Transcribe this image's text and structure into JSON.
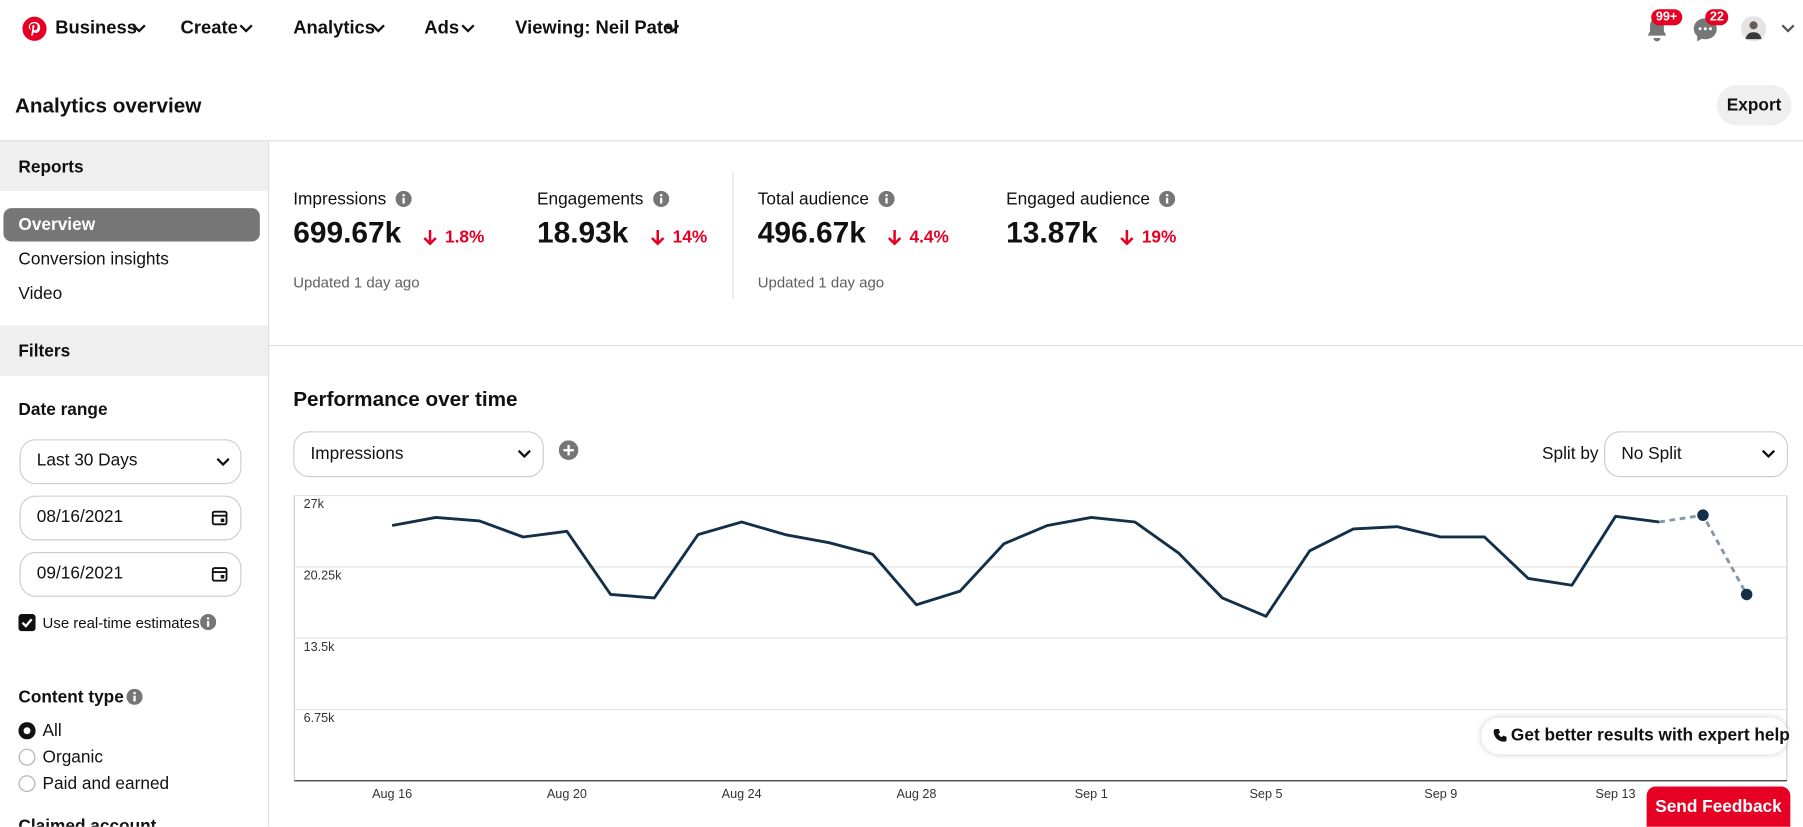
{
  "nav": {
    "brand": "Business",
    "items": [
      "Create",
      "Analytics",
      "Ads",
      "Viewing: Neil Patel"
    ],
    "notifications": "99+",
    "messages": "22"
  },
  "header": {
    "title": "Analytics overview",
    "export": "Export"
  },
  "sidebar": {
    "reports_heading": "Reports",
    "reports": [
      "Overview",
      "Conversion insights",
      "Video"
    ],
    "filters_heading": "Filters",
    "date_range_label": "Date range",
    "date_range": "Last 30 Days",
    "start_date": "08/16/2021",
    "end_date": "09/16/2021",
    "realtime": "Use real-time estimates",
    "content_type_label": "Content type",
    "content_types": [
      "All",
      "Organic",
      "Paid and earned"
    ],
    "claimed": "Claimed account"
  },
  "metrics": [
    {
      "label": "Impressions",
      "value": "699.67k",
      "change": "1.8%",
      "updated": "Updated 1 day ago"
    },
    {
      "label": "Engagements",
      "value": "18.93k",
      "change": "14%"
    },
    {
      "label": "Total audience",
      "value": "496.67k",
      "change": "4.4%",
      "updated": "Updated 1 day ago"
    },
    {
      "label": "Engaged audience",
      "value": "13.87k",
      "change": "19%"
    }
  ],
  "performance": {
    "title": "Performance over time",
    "metric": "Impressions",
    "split_label": "Split by",
    "split": "No Split"
  },
  "help": "Get better results with expert help",
  "feedback": "Send Feedback",
  "chart_data": {
    "type": "line",
    "categories": [
      "Aug 16",
      null,
      null,
      null,
      "Aug 20",
      null,
      null,
      null,
      "Aug 24",
      null,
      null,
      null,
      "Aug 28",
      null,
      null,
      null,
      "Sep 1",
      null,
      null,
      null,
      "Sep 5",
      null,
      null,
      null,
      "Sep 9",
      null,
      null,
      null,
      "Sep 13",
      null,
      null,
      null
    ],
    "series": [
      {
        "color": "#133048",
        "values": [
          24170,
          24930,
          24600,
          23080,
          23620,
          17640,
          17310,
          23300,
          24500,
          23300,
          22540,
          21450,
          16660,
          17960,
          22430,
          24170,
          24930,
          24500,
          21560,
          17310,
          15570,
          21770,
          23840,
          24060,
          23080,
          23080,
          19160,
          18510,
          25040,
          24500,
          null,
          null
        ]
      },
      {
        "color": "#8197ab",
        "dashed": true,
        "markers": true,
        "values": [
          null,
          null,
          null,
          null,
          null,
          null,
          null,
          null,
          null,
          null,
          null,
          null,
          null,
          null,
          null,
          null,
          null,
          null,
          null,
          null,
          null,
          null,
          null,
          null,
          null,
          null,
          null,
          null,
          null,
          24500,
          25150,
          17640
        ]
      }
    ],
    "ylim": [
      0,
      27000
    ],
    "yticks": [
      {
        "value": 6750,
        "label": "6.75k"
      },
      {
        "value": 13500,
        "label": "13.5k"
      },
      {
        "value": 20250,
        "label": "20.25k"
      },
      {
        "value": 27000,
        "label": "27k"
      }
    ],
    "grid": true
  }
}
